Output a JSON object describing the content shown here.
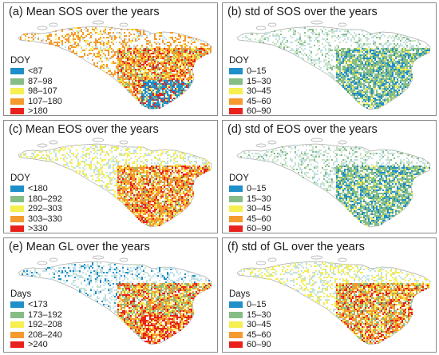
{
  "panels": [
    {
      "title": "(a) Mean SOS over the years",
      "legend_title": "DOY",
      "map_kind": "mean-sos",
      "classes": [
        {
          "label": "<87",
          "color": "#1f8fc9"
        },
        {
          "label": "87–98",
          "color": "#86bd86"
        },
        {
          "label": "98–107",
          "color": "#f5ef4f"
        },
        {
          "label": "107–180",
          "color": "#f59a2e"
        },
        {
          "label": ">180",
          "color": "#e8211c"
        }
      ]
    },
    {
      "title": "(b) std of SOS over the years",
      "legend_title": "DOY",
      "map_kind": "std-sos",
      "classes": [
        {
          "label": "0–15",
          "color": "#1f8fc9"
        },
        {
          "label": "15–30",
          "color": "#86bd86"
        },
        {
          "label": "30–45",
          "color": "#f5ef4f"
        },
        {
          "label": "45–60",
          "color": "#f59a2e"
        },
        {
          "label": "60–90",
          "color": "#e8211c"
        }
      ]
    },
    {
      "title": "(c) Mean EOS over the years",
      "legend_title": "DOY",
      "map_kind": "mean-eos",
      "classes": [
        {
          "label": "<180",
          "color": "#1f8fc9"
        },
        {
          "label": "180–292",
          "color": "#86bd86"
        },
        {
          "label": "292–303",
          "color": "#f5ef4f"
        },
        {
          "label": "303–330",
          "color": "#f59a2e"
        },
        {
          "label": ">330",
          "color": "#e8211c"
        }
      ]
    },
    {
      "title": "(d) std of EOS over the years",
      "legend_title": "DOY",
      "map_kind": "std-eos",
      "classes": [
        {
          "label": "0–15",
          "color": "#1f8fc9"
        },
        {
          "label": "15–30",
          "color": "#86bd86"
        },
        {
          "label": "30–45",
          "color": "#f5ef4f"
        },
        {
          "label": "45–60",
          "color": "#f59a2e"
        },
        {
          "label": "60–90",
          "color": "#e8211c"
        }
      ]
    },
    {
      "title": "(e) Mean GL over the years",
      "legend_title": "Days",
      "map_kind": "mean-gl",
      "classes": [
        {
          "label": "<173",
          "color": "#1f8fc9"
        },
        {
          "label": "173–192",
          "color": "#86bd86"
        },
        {
          "label": "192–208",
          "color": "#f5ef4f"
        },
        {
          "label": "208–240",
          "color": "#f59a2e"
        },
        {
          "label": ">240",
          "color": "#e8211c"
        }
      ]
    },
    {
      "title": "(f) std of GL over the years",
      "legend_title": "Days",
      "map_kind": "std-gl",
      "classes": [
        {
          "label": "0–15",
          "color": "#1f8fc9"
        },
        {
          "label": "15–30",
          "color": "#86bd86"
        },
        {
          "label": "30–45",
          "color": "#f5ef4f"
        },
        {
          "label": "45–60",
          "color": "#f59a2e"
        },
        {
          "label": "60–90",
          "color": "#e8211c"
        }
      ]
    }
  ]
}
